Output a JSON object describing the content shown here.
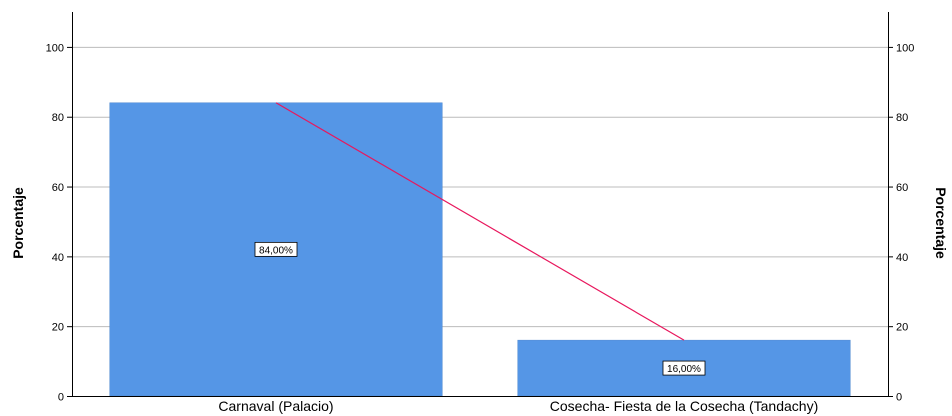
{
  "chart_data": {
    "type": "bar",
    "categories": [
      "Carnaval (Palacio)",
      "Cosecha- Fiesta de la Cosecha (Tandachy)"
    ],
    "values": [
      84,
      16
    ],
    "data_labels": [
      "84,00%",
      "16,00%"
    ],
    "overlay_line": {
      "type": "line",
      "values": [
        84,
        16
      ],
      "color": "#e8175d"
    },
    "ylabel_left": "Porcentaje",
    "ylabel_right": "Porcentaje",
    "ylim": [
      0,
      110
    ],
    "yticks": [
      0,
      20,
      40,
      60,
      80,
      100
    ],
    "ytick_labels": [
      "0",
      "20",
      "40",
      "60",
      "80",
      "100"
    ],
    "grid": true,
    "bar_color": "#5596e6"
  }
}
